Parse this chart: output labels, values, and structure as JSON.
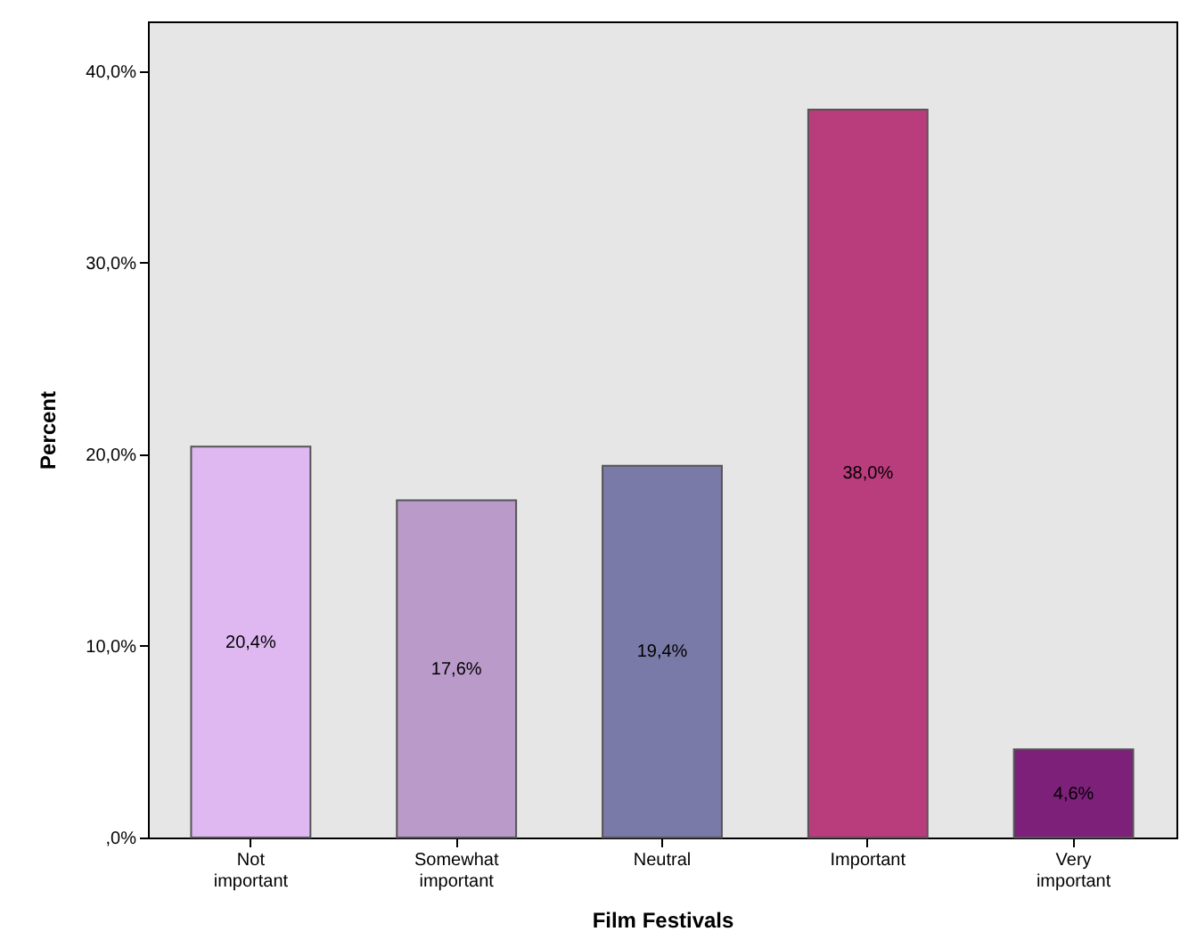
{
  "chart_data": {
    "type": "bar",
    "xlabel": "Film Festivals",
    "ylabel": "Percent",
    "categories": [
      "Not important",
      "Somewhat important",
      "Neutral",
      "Important",
      "Very important"
    ],
    "values": [
      20.4,
      17.6,
      19.4,
      38.0,
      4.6
    ],
    "colors": [
      "#dfb8f2",
      "#b99ac9",
      "#7a7aa8",
      "#b93c7c",
      "#7d2079"
    ],
    "value_labels": [
      "20,4%",
      "17,6%",
      "19,4%",
      "38,0%",
      "4,6%"
    ],
    "ylim": [
      0,
      42.6
    ],
    "yticks": [
      {
        "value": 0,
        "label": ",0%"
      },
      {
        "value": 10,
        "label": "10,0%"
      },
      {
        "value": 20,
        "label": "20,0%"
      },
      {
        "value": 30,
        "label": "30,0%"
      },
      {
        "value": 40,
        "label": "40,0%"
      }
    ],
    "grid": false,
    "legend": false
  }
}
